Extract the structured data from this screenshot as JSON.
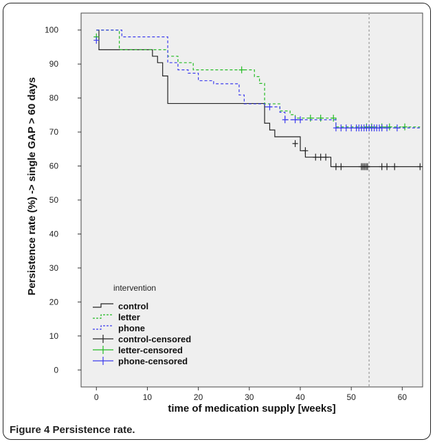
{
  "caption": {
    "label": "Figure 4",
    "text": "Persistence rate."
  },
  "chart_data": {
    "type": "line",
    "chart_style": "kaplan-meier step plot",
    "title": "",
    "xlabel": "time of medication supply [weeks]",
    "ylabel": "Persistence rate (%) -> single GAP > 60 days",
    "xlim": [
      -3,
      64
    ],
    "ylim": [
      -5,
      105
    ],
    "xticks": [
      0,
      10,
      20,
      30,
      40,
      50,
      60
    ],
    "yticks": [
      0,
      10,
      20,
      30,
      40,
      50,
      60,
      70,
      80,
      90,
      100
    ],
    "grid": false,
    "background": "#efefef",
    "reference_line": {
      "x": 53.5,
      "style": "dashed",
      "color": "#aaaaaa"
    },
    "legend": {
      "title": "intervention",
      "placement": "bottom-left",
      "entries": [
        {
          "label": "control",
          "kind": "step",
          "color": "#222222",
          "dash": "solid"
        },
        {
          "label": "letter",
          "kind": "step",
          "color": "#22bb22",
          "dash": "dashed"
        },
        {
          "label": "phone",
          "kind": "step",
          "color": "#3a3aee",
          "dash": "dashed"
        },
        {
          "label": "control-censored",
          "kind": "cross",
          "color": "#222222"
        },
        {
          "label": "letter-censored",
          "kind": "cross",
          "color": "#22bb22"
        },
        {
          "label": "phone-censored",
          "kind": "cross",
          "color": "#3a3aee"
        }
      ]
    },
    "series": [
      {
        "name": "control",
        "color": "#222222",
        "dash": "solid",
        "x": [
          0,
          0.5,
          9.5,
          11,
          12,
          13,
          14,
          29,
          33,
          34,
          35,
          40,
          41,
          42,
          46,
          63.5
        ],
        "y": [
          100,
          94.2,
          94.2,
          92.3,
          90.4,
          86.5,
          78.4,
          78.4,
          72.6,
          70.6,
          68.6,
          64.5,
          62.6,
          62.6,
          59.8,
          59.8
        ],
        "censored_x": [
          39,
          41,
          43,
          44,
          45,
          47,
          48,
          52,
          52.3,
          52.6,
          52.9,
          53.2,
          56,
          57,
          58.5,
          63.5
        ],
        "censored_y": [
          66.6,
          64.5,
          62.6,
          62.6,
          62.6,
          59.8,
          59.8,
          59.8,
          59.8,
          59.8,
          59.8,
          59.8,
          59.8,
          59.8,
          59.8,
          59.8
        ]
      },
      {
        "name": "letter",
        "color": "#22bb22",
        "dash": "dashed",
        "x": [
          0,
          4.5,
          14,
          16,
          19,
          29,
          31,
          32,
          33,
          36,
          38,
          39,
          47,
          63.5
        ],
        "y": [
          100,
          94.2,
          92.3,
          90.4,
          88.3,
          88.3,
          86.3,
          84.3,
          78.3,
          76.2,
          75.1,
          74.1,
          71.5,
          71.5
        ],
        "censored_x": [
          0,
          28.5,
          42,
          44,
          46.5,
          53,
          54,
          56,
          57.5,
          60.5
        ],
        "censored_y": [
          98,
          88.3,
          74.1,
          74.1,
          74.1,
          71.5,
          71.5,
          71.5,
          71.5,
          71.5
        ]
      },
      {
        "name": "phone",
        "color": "#3a3aee",
        "dash": "dashed",
        "x": [
          0,
          5,
          14,
          16,
          18,
          20,
          23,
          28,
          29,
          33,
          36,
          37,
          41,
          47,
          63.5
        ],
        "y": [
          100,
          98,
          90.4,
          88.3,
          87.3,
          85.1,
          84.2,
          80.9,
          78.3,
          77.4,
          75.8,
          73.6,
          73.6,
          71.2,
          71.2
        ],
        "censored_x": [
          0,
          34,
          37,
          39,
          40,
          47,
          48,
          49,
          50,
          51,
          51.5,
          52,
          52.5,
          53,
          53.5,
          54,
          54.5,
          55,
          55.5,
          56,
          57,
          59
        ],
        "censored_y": [
          97,
          77.4,
          73.6,
          73.6,
          73.6,
          71.2,
          71.2,
          71.2,
          71.2,
          71.2,
          71.2,
          71.2,
          71.2,
          71.2,
          71.2,
          71.2,
          71.2,
          71.2,
          71.2,
          71.2,
          71.2,
          71.2
        ]
      }
    ]
  }
}
